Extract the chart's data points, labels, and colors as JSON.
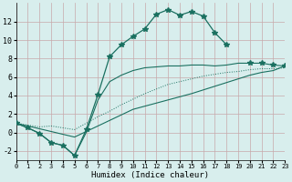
{
  "bg_color": "#d8eeed",
  "grid_color": "#c8a8aa",
  "line_color": "#1a7060",
  "xlabel": "Humidex (Indice chaleur)",
  "xlim": [
    0,
    23
  ],
  "ylim": [
    -3,
    14
  ],
  "xticks": [
    0,
    1,
    2,
    3,
    4,
    5,
    6,
    7,
    8,
    9,
    10,
    11,
    12,
    13,
    14,
    15,
    16,
    17,
    18,
    19,
    20,
    21,
    22,
    23
  ],
  "yticks": [
    -2,
    0,
    2,
    4,
    6,
    8,
    10,
    12
  ],
  "curve1_x": [
    0,
    1,
    2,
    3,
    4,
    5,
    6,
    7,
    8,
    9,
    10,
    11,
    12,
    13,
    14,
    15,
    16,
    17,
    18
  ],
  "curve1_y": [
    1.0,
    0.5,
    -0.1,
    -1.1,
    -1.4,
    -2.5,
    0.3,
    4.1,
    8.2,
    9.5,
    10.4,
    11.2,
    12.8,
    13.3,
    12.7,
    13.1,
    12.6,
    10.8,
    9.5
  ],
  "curve2_x": [
    0,
    1,
    2,
    3,
    4,
    5,
    6,
    7,
    8,
    9,
    10,
    11,
    12,
    13,
    14,
    15,
    16,
    17,
    18,
    19,
    20,
    21,
    22,
    23
  ],
  "curve2_y": [
    1.0,
    0.8,
    0.6,
    0.7,
    0.5,
    0.3,
    1.0,
    1.7,
    2.3,
    3.0,
    3.6,
    4.2,
    4.7,
    5.2,
    5.5,
    5.8,
    6.1,
    6.3,
    6.5,
    6.6,
    6.8,
    6.9,
    6.9,
    7.0
  ],
  "curve3_x": [
    0,
    1,
    2,
    3,
    4,
    5,
    6,
    7,
    8,
    9,
    10,
    11,
    12,
    13,
    14,
    15,
    16,
    17,
    18,
    19,
    20,
    21,
    22,
    23
  ],
  "curve3_y": [
    1.0,
    0.5,
    -0.1,
    -1.1,
    -1.4,
    -2.5,
    0.0,
    3.5,
    5.5,
    6.2,
    6.7,
    7.0,
    7.1,
    7.2,
    7.2,
    7.3,
    7.3,
    7.2,
    7.3,
    7.5,
    7.5,
    7.5,
    7.3,
    7.2
  ],
  "curve4_x": [
    0,
    5,
    10,
    15,
    20,
    21,
    22,
    23
  ],
  "curve4_y": [
    1.0,
    -0.5,
    2.5,
    4.2,
    6.2,
    6.5,
    6.7,
    7.2
  ]
}
